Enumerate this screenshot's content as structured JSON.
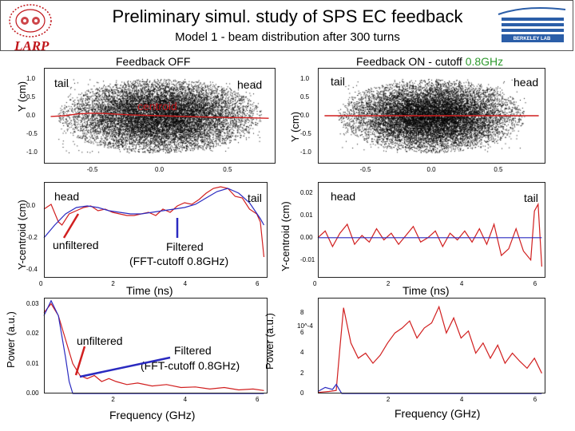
{
  "header": {
    "title": "Preliminary simul. study of SPS EC feedback",
    "subtitle": "Model 1 - beam distribution after 300 turns",
    "larp_logo": "LARP",
    "berkeley_logo": "BERKELEY LAB"
  },
  "colors": {
    "red": "#d11f1f",
    "blue": "#2a2ac0",
    "green": "#2e9a2e",
    "scatter": "#000000"
  },
  "chart_data": [
    {
      "id": "scatter_off",
      "type": "scatter",
      "title": "Feedback OFF",
      "ylabel": "Y (cm)",
      "annotations": [
        "tail",
        "head",
        "centroid"
      ],
      "xticks": [
        "-0.5",
        "0.0",
        "0.5"
      ],
      "yticks": [
        "1.0",
        "0.5",
        "0.0",
        "-0.5",
        "-1.0"
      ],
      "xlim": [
        -0.85,
        0.85
      ],
      "ylim": [
        -1.3,
        1.3
      ],
      "distribution": {
        "center": [
          0.0,
          0.0
        ],
        "sigma": [
          0.33,
          0.5
        ],
        "clip": [
          0.75,
          1.0
        ]
      },
      "centroid_series": {
        "x": [
          -0.8,
          -0.7,
          -0.6,
          -0.5,
          -0.4,
          -0.3,
          -0.2,
          -0.1,
          0.0,
          0.1,
          0.2,
          0.3,
          0.4,
          0.5,
          0.6,
          0.7,
          0.8
        ],
        "y": [
          -0.02,
          0.0,
          0.05,
          0.07,
          0.06,
          0.04,
          0.02,
          0.01,
          0.0,
          -0.01,
          -0.02,
          -0.03,
          -0.04,
          -0.05,
          -0.05,
          -0.06,
          -0.07
        ]
      }
    },
    {
      "id": "scatter_on",
      "type": "scatter",
      "title": "Feedback ON - cutoff",
      "title_highlight": "0.8GHz",
      "ylabel": "Y (cm)",
      "annotations": [
        "tail",
        "head"
      ],
      "xticks": [
        "-0.5",
        "0.0",
        "0.5"
      ],
      "yticks": [
        "1.0",
        "0.5",
        "0.0",
        "-0.5",
        "-1.0"
      ],
      "xlim": [
        -0.85,
        0.85
      ],
      "ylim": [
        -1.3,
        1.3
      ],
      "distribution": {
        "center": [
          0.0,
          0.0
        ],
        "sigma": [
          0.3,
          0.45
        ],
        "clip": [
          0.7,
          1.0
        ]
      },
      "centroid_series": {
        "x": [
          -0.8,
          0.8
        ],
        "y": [
          0.0,
          0.0
        ]
      }
    },
    {
      "id": "centroid_off",
      "type": "line",
      "xlabel": "Time (ns)",
      "ylabel": "Y-centroid (cm)",
      "annotations": [
        "head",
        "tail",
        "unfiltered",
        "Filtered",
        "(FFT-cutoff 0.8GHz)"
      ],
      "xticks": [
        "0",
        "2",
        "4",
        "6"
      ],
      "yticks": [
        "0.0",
        "-0.2",
        "-0.4"
      ],
      "xlim": [
        0,
        6.2
      ],
      "ylim": [
        -0.45,
        0.15
      ],
      "series": [
        {
          "name": "unfiltered",
          "color": "red",
          "x": [
            0.0,
            0.2,
            0.4,
            0.5,
            0.7,
            0.9,
            1.1,
            1.3,
            1.5,
            1.7,
            1.9,
            2.1,
            2.3,
            2.5,
            2.7,
            2.9,
            3.1,
            3.3,
            3.5,
            3.7,
            3.9,
            4.1,
            4.3,
            4.5,
            4.7,
            4.9,
            5.1,
            5.3,
            5.5,
            5.7,
            5.9,
            6.0,
            6.1
          ],
          "y": [
            -0.02,
            0.01,
            -0.1,
            -0.12,
            -0.05,
            -0.03,
            -0.01,
            0.0,
            -0.03,
            -0.02,
            -0.04,
            -0.05,
            -0.06,
            -0.06,
            -0.05,
            -0.04,
            -0.06,
            -0.02,
            -0.04,
            0.0,
            0.02,
            0.01,
            0.04,
            0.08,
            0.11,
            0.12,
            0.11,
            0.06,
            0.05,
            -0.02,
            -0.05,
            -0.1,
            -0.32
          ]
        },
        {
          "name": "Filtered",
          "color": "blue",
          "x": [
            0.0,
            0.3,
            0.6,
            0.9,
            1.2,
            1.5,
            1.8,
            2.1,
            2.4,
            2.7,
            3.0,
            3.3,
            3.6,
            3.9,
            4.2,
            4.5,
            4.8,
            5.1,
            5.4,
            5.7,
            6.0,
            6.1
          ],
          "y": [
            -0.2,
            -0.12,
            -0.05,
            -0.01,
            0.0,
            -0.01,
            -0.03,
            -0.04,
            -0.05,
            -0.05,
            -0.04,
            -0.03,
            -0.02,
            -0.01,
            0.01,
            0.05,
            0.09,
            0.11,
            0.08,
            0.02,
            -0.08,
            -0.12
          ]
        }
      ]
    },
    {
      "id": "centroid_on",
      "type": "line",
      "xlabel": "Time (ns)",
      "ylabel": "Y-centroid (cm)",
      "annotations": [
        "head",
        "tail"
      ],
      "xticks": [
        "0",
        "2",
        "4",
        "6"
      ],
      "yticks": [
        "0.02",
        "0.01",
        "0.00",
        "-0.01"
      ],
      "xlim": [
        0,
        6.2
      ],
      "ylim": [
        -0.018,
        0.025
      ],
      "series": [
        {
          "name": "unfiltered",
          "color": "red",
          "x": [
            0.0,
            0.2,
            0.4,
            0.6,
            0.8,
            1.0,
            1.2,
            1.4,
            1.6,
            1.8,
            2.0,
            2.2,
            2.4,
            2.6,
            2.8,
            3.0,
            3.2,
            3.4,
            3.6,
            3.8,
            4.0,
            4.2,
            4.4,
            4.6,
            4.8,
            5.0,
            5.2,
            5.4,
            5.6,
            5.8,
            5.9,
            6.0,
            6.1
          ],
          "y": [
            0.0,
            0.003,
            -0.004,
            0.002,
            0.006,
            -0.003,
            0.001,
            -0.002,
            0.004,
            -0.001,
            0.002,
            -0.003,
            0.001,
            0.005,
            -0.002,
            0.0,
            0.003,
            -0.004,
            0.002,
            -0.001,
            0.003,
            -0.002,
            0.004,
            -0.003,
            0.006,
            -0.008,
            -0.005,
            0.004,
            -0.006,
            -0.01,
            0.012,
            0.015,
            -0.013
          ]
        },
        {
          "name": "Filtered",
          "color": "blue",
          "x": [
            0.0,
            6.1
          ],
          "y": [
            0.0,
            0.0
          ]
        }
      ]
    },
    {
      "id": "spectrum_off",
      "type": "line",
      "xlabel": "Frequency (GHz)",
      "ylabel": "Power (a.u.)",
      "annotations": [
        "unfiltered",
        "Filtered",
        "(FFT-cutoff 0.8GHz)"
      ],
      "xticks": [
        "2",
        "4",
        "6"
      ],
      "yticks": [
        "0.03",
        "0.02",
        "0.01",
        "0.00"
      ],
      "xlim": [
        0,
        6.2
      ],
      "ylim": [
        0,
        0.032
      ],
      "series": [
        {
          "name": "unfiltered",
          "color": "red",
          "x": [
            0.0,
            0.2,
            0.4,
            0.6,
            0.8,
            1.0,
            1.2,
            1.4,
            1.6,
            1.8,
            2.0,
            2.3,
            2.6,
            3.0,
            3.4,
            3.8,
            4.2,
            4.6,
            5.0,
            5.4,
            5.8,
            6.1
          ],
          "y": [
            0.027,
            0.03,
            0.026,
            0.018,
            0.01,
            0.006,
            0.005,
            0.006,
            0.004,
            0.005,
            0.004,
            0.003,
            0.0035,
            0.0025,
            0.003,
            0.002,
            0.0022,
            0.0015,
            0.002,
            0.0012,
            0.0015,
            0.001
          ]
        },
        {
          "name": "Filtered",
          "color": "blue",
          "x": [
            0.0,
            0.2,
            0.4,
            0.6,
            0.7,
            0.8,
            1.0,
            6.1
          ],
          "y": [
            0.026,
            0.031,
            0.026,
            0.012,
            0.004,
            0.0,
            0.0,
            0.0
          ]
        }
      ]
    },
    {
      "id": "spectrum_on",
      "type": "line",
      "xlabel": "Frequency (GHz)",
      "ylabel": "Power (a.u.)",
      "yscale_label": "10^-4",
      "xticks": [
        "2",
        "4",
        "6"
      ],
      "yticks": [
        "8",
        "6",
        "4",
        "2",
        "0"
      ],
      "xlim": [
        0,
        6.2
      ],
      "ylim": [
        0,
        9.5
      ],
      "series": [
        {
          "name": "unfiltered",
          "color": "red",
          "x": [
            0.0,
            0.3,
            0.5,
            0.6,
            0.7,
            0.9,
            1.1,
            1.3,
            1.5,
            1.7,
            1.9,
            2.1,
            2.3,
            2.5,
            2.7,
            2.9,
            3.1,
            3.3,
            3.5,
            3.7,
            3.9,
            4.1,
            4.3,
            4.5,
            4.7,
            4.9,
            5.1,
            5.3,
            5.5,
            5.7,
            5.9,
            6.1
          ],
          "y": [
            0.1,
            0.2,
            0.3,
            4.5,
            8.5,
            5.0,
            3.5,
            4.0,
            3.0,
            3.8,
            5.0,
            6.0,
            6.5,
            7.2,
            5.5,
            6.5,
            7.0,
            8.6,
            6.0,
            7.5,
            5.5,
            6.2,
            4.0,
            5.0,
            3.5,
            4.8,
            3.0,
            4.0,
            3.2,
            2.5,
            3.5,
            2.0
          ]
        },
        {
          "name": "Filtered",
          "color": "blue",
          "x": [
            0.0,
            0.2,
            0.4,
            0.5,
            0.6,
            0.65,
            6.1
          ],
          "y": [
            0.2,
            0.6,
            0.4,
            0.9,
            0.3,
            0.0,
            0.0
          ]
        }
      ]
    }
  ]
}
